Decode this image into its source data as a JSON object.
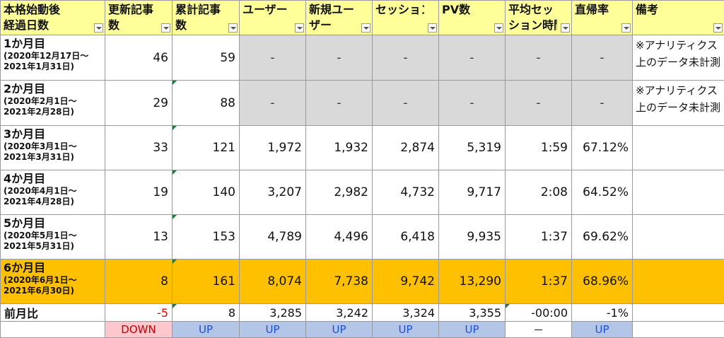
{
  "headers": [
    {
      "lines": [
        "本格始動後",
        "経過日数"
      ]
    },
    {
      "lines": [
        "更新記事",
        "数"
      ]
    },
    {
      "lines": [
        "累計記事",
        "数"
      ]
    },
    {
      "lines": [
        "ユーザー"
      ]
    },
    {
      "lines": [
        "新規ユー",
        "ザー"
      ]
    },
    {
      "lines": [
        "セッション"
      ]
    },
    {
      "lines": [
        "PV数"
      ]
    },
    {
      "lines": [
        "平均セッ",
        "ション時間"
      ]
    },
    {
      "lines": [
        "直帰率"
      ]
    },
    {
      "lines": [
        "備考"
      ]
    }
  ],
  "rows": [
    {
      "month": "1か月目",
      "range1": "(2020年12月17日～",
      "range2": "2021年1月31日)",
      "updated": "46",
      "total": "59",
      "users": "-",
      "new_users": "-",
      "sessions": "-",
      "pv": "-",
      "avg_time": "-",
      "bounce": "-",
      "note": "※アナリティクス上のデータ未計測"
    },
    {
      "month": "2か月目",
      "range1": "(2020年2月1日～",
      "range2": "2021年2月28日)",
      "updated": "29",
      "total": "88",
      "users": "-",
      "new_users": "-",
      "sessions": "-",
      "pv": "-",
      "avg_time": "-",
      "bounce": "-",
      "note": "※アナリティクス上のデータ未計測"
    },
    {
      "month": "3か月目",
      "range1": "(2020年3月1日～",
      "range2": "2021年3月31日)",
      "updated": "33",
      "total": "121",
      "users": "1,972",
      "new_users": "1,932",
      "sessions": "2,874",
      "pv": "5,319",
      "avg_time": "1:59",
      "bounce": "67.12%",
      "note": ""
    },
    {
      "month": "4か月目",
      "range1": "(2020年4月1日～",
      "range2": "2021年4月28日)",
      "updated": "19",
      "total": "140",
      "users": "3,207",
      "new_users": "2,982",
      "sessions": "4,732",
      "pv": "9,717",
      "avg_time": "2:08",
      "bounce": "64.52%",
      "note": ""
    },
    {
      "month": "5か月目",
      "range1": "(2020年5月1日～",
      "range2": "2021年5月31日)",
      "updated": "13",
      "total": "153",
      "users": "4,789",
      "new_users": "4,496",
      "sessions": "6,418",
      "pv": "9,935",
      "avg_time": "1:37",
      "bounce": "69.62%",
      "note": ""
    },
    {
      "month": "6か月目",
      "range1": "(2020年6月1日～",
      "range2": "2021年6月30日)",
      "updated": "8",
      "total": "161",
      "users": "8,074",
      "new_users": "7,738",
      "sessions": "9,742",
      "pv": "13,290",
      "avg_time": "1:37",
      "bounce": "68.96%",
      "note": ""
    }
  ],
  "summary": {
    "label": "前月比",
    "updated": "-5",
    "total": "8",
    "users": "3,285",
    "new_users": "3,242",
    "sessions": "3,324",
    "pv": "3,355",
    "avg_time": "-00:00",
    "bounce": "-1%",
    "note": ""
  },
  "badges": {
    "updated": "DOWN",
    "total": "UP",
    "users": "UP",
    "new_users": "UP",
    "sessions": "UP",
    "pv": "UP",
    "avg_time": "－",
    "bounce": "UP"
  },
  "colors": {
    "header_bg": "#ffff99",
    "gray_bg": "#d9d9d9",
    "highlight_bg": "#ffc000",
    "down_bg": "#ffc7ce",
    "down_text": "#c00000",
    "up_bg": "#b4c6e7",
    "up_text": "#1f4fd6"
  }
}
